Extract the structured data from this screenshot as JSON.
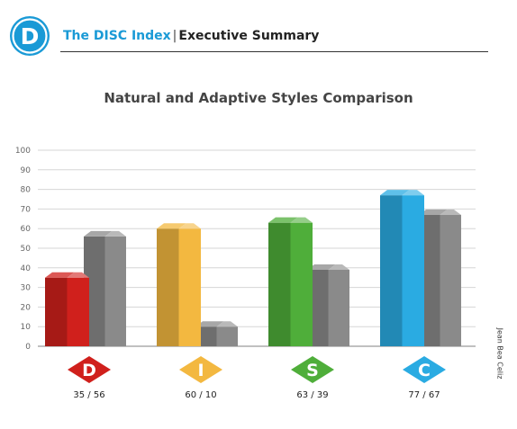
{
  "header": {
    "logo_letter": "D",
    "brand": "The DISC Index",
    "separator": "|",
    "section": "Executive Summary"
  },
  "author": "Jean Bea Celiz",
  "colors": {
    "brand": "#1a9ad6",
    "D": "#d0201c",
    "I": "#f3b840",
    "S": "#4fae3a",
    "C": "#2aabe2",
    "adaptive": "#8a8a8a"
  },
  "chart_data": {
    "type": "bar",
    "title": "Natural and Adaptive Styles Comparison",
    "categories": [
      "D",
      "I",
      "S",
      "C"
    ],
    "series": [
      {
        "values": [
          35,
          60,
          63,
          77
        ]
      },
      {
        "values": [
          56,
          10,
          39,
          67
        ]
      }
    ],
    "value_labels": [
      "35 / 56",
      "60 / 10",
      "63 / 39",
      "77 / 67"
    ],
    "ylim": [
      0,
      100
    ],
    "yticks": [
      0,
      10,
      20,
      30,
      40,
      50,
      60,
      70,
      80,
      90,
      100
    ],
    "grid": true,
    "legend": "none"
  }
}
